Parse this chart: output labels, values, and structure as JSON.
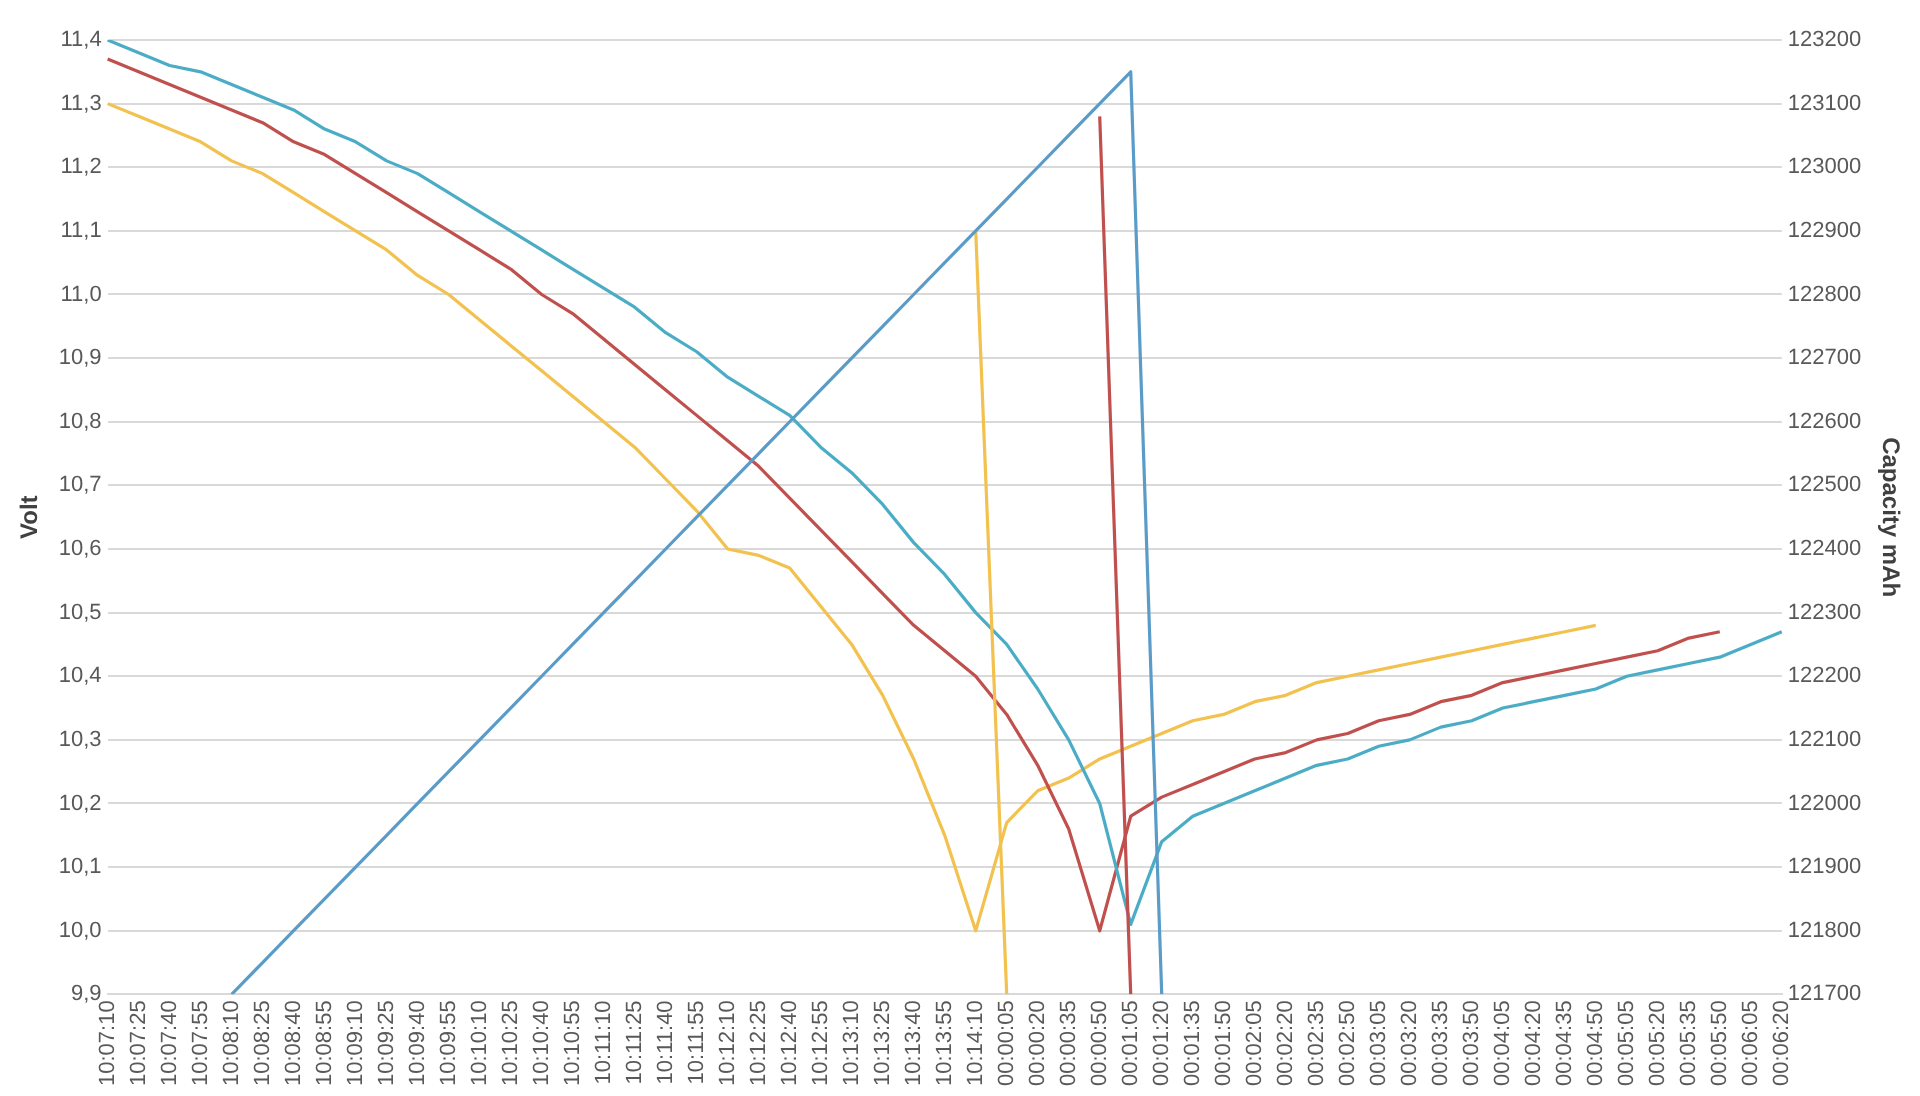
{
  "chart_data": {
    "type": "line",
    "ylabel": "Volt",
    "y2label": "Capacity mAh",
    "categories": [
      "10:07:10",
      "10:07:25",
      "10:07:40",
      "10:07:55",
      "10:08:10",
      "10:08:25",
      "10:08:40",
      "10:08:55",
      "10:09:10",
      "10:09:25",
      "10:09:40",
      "10:09:55",
      "10:10:10",
      "10:10:25",
      "10:10:40",
      "10:10:55",
      "10:11:10",
      "10:11:25",
      "10:11:40",
      "10:11:55",
      "10:12:10",
      "10:12:25",
      "10:12:40",
      "10:12:55",
      "10:13:10",
      "10:13:25",
      "10:13:40",
      "10:13:55",
      "10:14:10",
      "00:00:05",
      "00:00:20",
      "00:00:35",
      "00:00:50",
      "00:01:05",
      "00:01:20",
      "00:01:35",
      "00:01:50",
      "00:02:05",
      "00:02:20",
      "00:02:35",
      "00:02:50",
      "00:03:05",
      "00:03:20",
      "00:03:35",
      "00:03:50",
      "00:04:05",
      "00:04:20",
      "00:04:35",
      "00:04:50",
      "00:05:05",
      "00:05:20",
      "00:05:35",
      "00:05:50",
      "00:06:05",
      "00:06:20"
    ],
    "series": [
      {
        "color": "#f2c14e",
        "values": [
          11.3,
          11.28,
          11.26,
          11.24,
          11.21,
          11.19,
          11.16,
          11.13,
          11.1,
          11.07,
          11.03,
          11.0,
          10.96,
          10.92,
          10.88,
          10.84,
          10.8,
          10.76,
          10.71,
          10.66,
          10.6,
          10.59,
          10.57,
          10.51,
          10.45,
          10.37,
          10.27,
          10.15,
          10.0,
          10.17,
          10.22,
          10.24,
          10.27,
          10.29,
          10.31,
          10.33,
          10.34,
          10.36,
          10.37,
          10.39,
          10.4,
          10.41,
          10.42,
          10.43,
          10.44,
          10.45,
          10.46,
          10.47,
          10.48,
          null,
          null,
          null,
          null,
          null,
          null
        ]
      },
      {
        "color": "#c0504d",
        "values": [
          11.37,
          11.35,
          11.33,
          11.31,
          11.29,
          11.27,
          11.24,
          11.22,
          11.19,
          11.16,
          11.13,
          11.1,
          11.07,
          11.04,
          11.0,
          10.97,
          10.93,
          10.89,
          10.85,
          10.81,
          10.77,
          10.73,
          10.68,
          10.63,
          10.58,
          10.53,
          10.48,
          10.44,
          10.4,
          10.34,
          10.26,
          10.16,
          10.0,
          10.18,
          10.21,
          10.23,
          10.25,
          10.27,
          10.28,
          10.3,
          10.31,
          10.33,
          10.34,
          10.36,
          10.37,
          10.39,
          10.4,
          10.41,
          10.42,
          10.43,
          10.44,
          10.46,
          10.47,
          null,
          null
        ]
      },
      {
        "color": "#4bacc6",
        "values": [
          11.4,
          11.38,
          11.36,
          11.35,
          11.33,
          11.31,
          11.29,
          11.26,
          11.24,
          11.21,
          11.19,
          11.16,
          11.13,
          11.1,
          11.07,
          11.04,
          11.01,
          10.98,
          10.94,
          10.91,
          10.87,
          10.84,
          10.81,
          10.76,
          10.72,
          10.67,
          10.61,
          10.56,
          10.5,
          10.45,
          10.38,
          10.3,
          10.2,
          10.01,
          10.14,
          10.18,
          10.2,
          10.22,
          10.24,
          10.26,
          10.27,
          10.29,
          10.3,
          10.32,
          10.33,
          10.35,
          10.36,
          10.37,
          10.38,
          10.4,
          10.41,
          10.42,
          10.43,
          10.45,
          10.47
        ]
      },
      {
        "color": "#f2c14e",
        "axis": "y2",
        "values": [
          null,
          null,
          null,
          null,
          null,
          null,
          null,
          null,
          null,
          null,
          null,
          null,
          null,
          null,
          null,
          null,
          null,
          null,
          null,
          null,
          null,
          null,
          null,
          null,
          null,
          null,
          null,
          null,
          122900,
          121700,
          null,
          null,
          null,
          null,
          null,
          null,
          null,
          null,
          null,
          null,
          null,
          null,
          null,
          null,
          null,
          null,
          null,
          null,
          null,
          null,
          null,
          null,
          null,
          null,
          null
        ]
      },
      {
        "color": "#c0504d",
        "axis": "y2",
        "values": [
          null,
          null,
          null,
          null,
          null,
          null,
          null,
          null,
          null,
          null,
          null,
          null,
          null,
          null,
          null,
          null,
          null,
          null,
          null,
          null,
          null,
          null,
          null,
          null,
          null,
          null,
          null,
          null,
          null,
          null,
          null,
          null,
          123080,
          121700,
          null,
          null,
          null,
          null,
          null,
          null,
          null,
          null,
          null,
          null,
          null,
          null,
          null,
          null,
          null,
          null,
          null,
          null,
          null,
          null,
          null
        ]
      },
      {
        "color": "#5b9bc8",
        "axis": "y2",
        "values": [
          null,
          null,
          null,
          null,
          121700,
          121750,
          121800,
          121850,
          121900,
          121950,
          122000,
          122050,
          122100,
          122150,
          122200,
          122250,
          122300,
          122350,
          122400,
          122450,
          122500,
          122550,
          122600,
          122650,
          122700,
          122750,
          122800,
          122850,
          122900,
          122950,
          123000,
          123050,
          123100,
          123150,
          121700,
          null,
          null,
          null,
          null,
          null,
          null,
          null,
          null,
          null,
          null,
          null,
          null,
          null,
          null,
          null,
          null,
          null,
          null,
          null,
          null
        ]
      }
    ],
    "ylim": [
      9.9,
      11.4
    ],
    "yticks": [
      {
        "value": 9.9,
        "label": "9,9"
      },
      {
        "value": 10.0,
        "label": "10,0"
      },
      {
        "value": 10.1,
        "label": "10,1"
      },
      {
        "value": 10.2,
        "label": "10,2"
      },
      {
        "value": 10.3,
        "label": "10,3"
      },
      {
        "value": 10.4,
        "label": "10,4"
      },
      {
        "value": 10.5,
        "label": "10,5"
      },
      {
        "value": 10.6,
        "label": "10,6"
      },
      {
        "value": 10.7,
        "label": "10,7"
      },
      {
        "value": 10.8,
        "label": "10,8"
      },
      {
        "value": 10.9,
        "label": "10,9"
      },
      {
        "value": 11.0,
        "label": "11,0"
      },
      {
        "value": 11.1,
        "label": "11,1"
      },
      {
        "value": 11.2,
        "label": "11,2"
      },
      {
        "value": 11.3,
        "label": "11,3"
      },
      {
        "value": 11.4,
        "label": "11,4"
      }
    ],
    "y2lim": [
      121700,
      123200
    ],
    "y2ticks": [
      121700,
      121800,
      121900,
      122000,
      122100,
      122200,
      122300,
      122400,
      122500,
      122600,
      122700,
      122800,
      122900,
      123000,
      123100,
      123200
    ],
    "grid": "y",
    "legend": false,
    "marker": "none",
    "line_style": "solid"
  }
}
